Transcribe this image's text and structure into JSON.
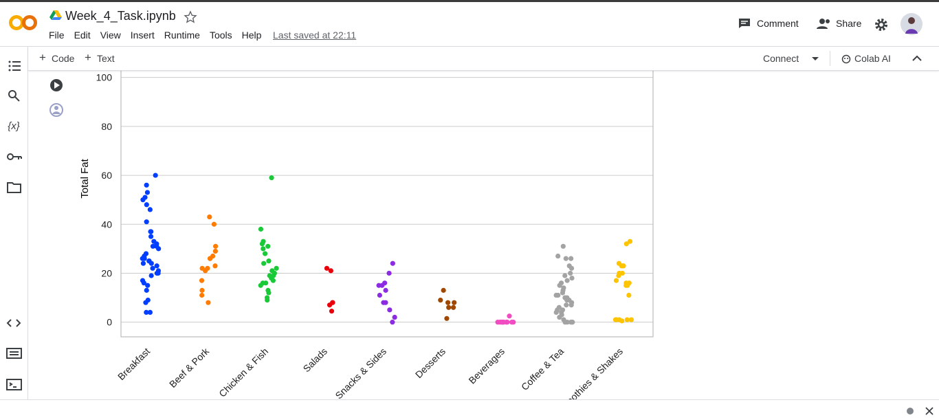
{
  "header": {
    "title": "Week_4_Task.ipynb",
    "menu": [
      "File",
      "Edit",
      "View",
      "Insert",
      "Runtime",
      "Tools",
      "Help"
    ],
    "last_saved": "Last saved at 22:11",
    "comment": "Comment",
    "share": "Share"
  },
  "toolbar": {
    "code": "Code",
    "text": "Text",
    "connect": "Connect",
    "colab_ai": "Colab AI"
  },
  "chart_data": {
    "type": "strip",
    "y_label": "Total Fat",
    "categories": [
      "Breakfast",
      "Beef & Pork",
      "Chicken & Fish",
      "Salads",
      "Snacks & Sides",
      "Desserts",
      "Beverages",
      "Coffee & Tea",
      "Smoothies & Shakes"
    ],
    "colors": [
      "#023eff",
      "#ff7c00",
      "#1ac938",
      "#e8000b",
      "#8b2be2",
      "#9f4800",
      "#f14cc1",
      "#a3a3a3",
      "#ffc400"
    ],
    "values": [
      [
        60,
        56,
        53,
        51,
        50,
        48,
        46,
        41,
        37,
        37,
        35,
        33,
        32,
        31,
        31,
        30,
        28,
        27,
        26,
        26,
        25,
        25,
        24,
        24,
        23,
        22,
        21,
        20,
        20,
        19,
        17,
        16,
        15,
        13,
        9,
        8,
        4,
        4
      ],
      [
        43,
        40,
        31,
        29,
        27,
        26,
        26,
        23,
        22,
        22,
        21,
        17,
        13,
        11,
        8
      ],
      [
        59,
        38,
        33,
        32,
        31,
        30,
        28,
        25,
        24,
        22,
        21,
        20,
        19,
        19,
        18,
        17,
        16,
        16,
        15,
        13,
        12,
        10,
        9
      ],
      [
        22,
        21,
        8,
        8,
        7,
        4.5
      ],
      [
        24,
        20,
        16,
        15,
        15,
        13,
        11,
        8,
        8,
        5,
        2,
        0
      ],
      [
        13,
        9,
        8,
        8,
        6,
        6,
        1.5
      ],
      [
        2.5,
        0,
        0,
        0,
        0,
        0,
        0,
        0,
        0,
        0,
        0,
        0
      ],
      [
        31,
        27,
        26,
        26,
        23,
        22,
        20,
        19,
        18,
        17,
        16,
        15,
        14,
        13,
        12,
        11,
        11,
        10,
        10,
        9,
        9,
        8,
        7,
        7,
        6,
        5,
        5,
        4,
        4,
        3,
        2,
        1,
        0,
        0,
        0,
        0,
        0
      ],
      [
        33,
        32,
        24,
        23,
        23,
        23,
        20,
        20,
        19,
        17,
        16,
        16,
        15,
        15,
        11,
        1,
        1,
        1,
        1,
        1,
        0.5
      ]
    ],
    "ylim": [
      -6,
      103
    ],
    "yticks": [
      0,
      20,
      40,
      60,
      80,
      100
    ],
    "grid": true
  }
}
